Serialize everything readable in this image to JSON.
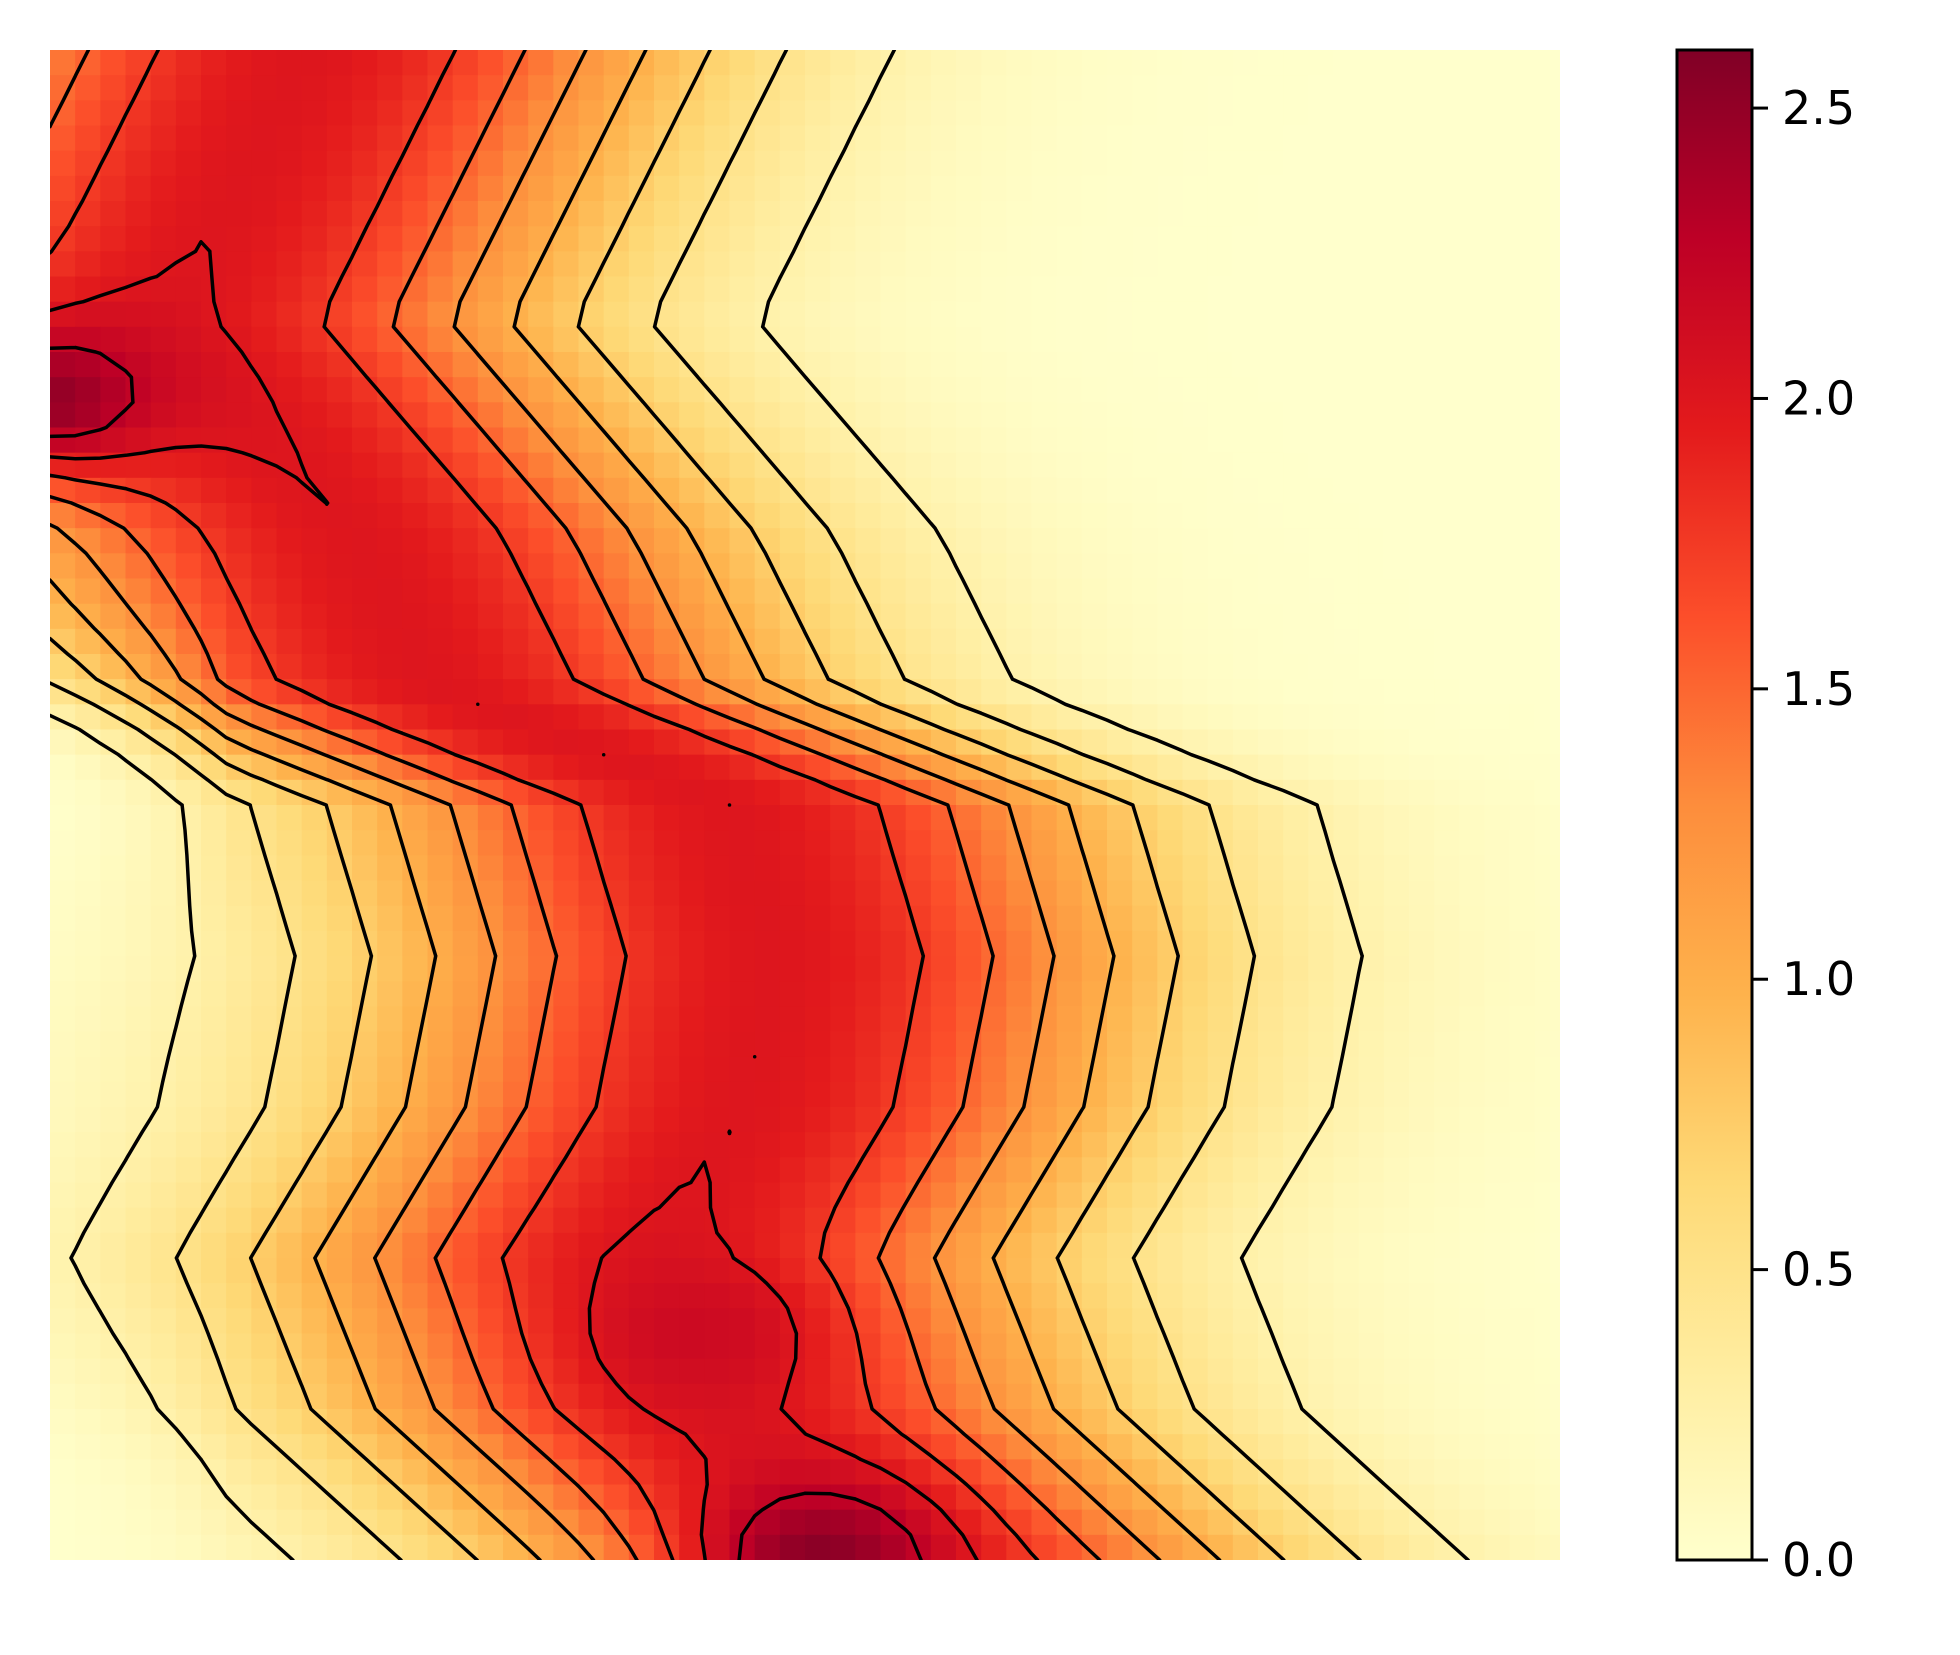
{
  "chart_data": {
    "type": "heatmap",
    "title": "",
    "xlabel": "",
    "ylabel": "",
    "axes_visible": false,
    "grid": false,
    "colormap": {
      "name": "YlOrRd",
      "stops": [
        "#ffffcc",
        "#ffeda0",
        "#fed976",
        "#feb24c",
        "#fd8d3c",
        "#fc4e2a",
        "#e31a1c",
        "#bd0026",
        "#800026"
      ]
    },
    "colorbar": {
      "location": "right",
      "range": [
        0,
        2.6
      ],
      "ticks": [
        0.0,
        0.5,
        1.0,
        1.5,
        2.0,
        2.5
      ],
      "tick_labels": [
        "0.0",
        "0.5",
        "1.0",
        "1.5",
        "2.0",
        "2.5"
      ]
    },
    "contour_color": "#000000",
    "contour_levels": [
      0.25,
      0.5,
      0.75,
      1.0,
      1.25,
      1.5,
      1.75,
      2.0,
      2.25
    ],
    "field": {
      "description": "zigzag band field",
      "value_range": [
        0,
        2.6
      ],
      "band_center_x": [
        0.17,
        0.08,
        0.2,
        0.25,
        0.45,
        0.48,
        0.46,
        0.4,
        0.44,
        0.55
      ],
      "band_center_y": [
        0.0,
        0.18,
        0.32,
        0.42,
        0.5,
        0.6,
        0.7,
        0.8,
        0.9,
        1.0
      ],
      "band_width": 0.4,
      "peak_value": 2.0,
      "hotspots": [
        {
          "x": 0.0,
          "y": 0.23,
          "value": 2.5
        },
        {
          "x": 0.51,
          "y": 1.0,
          "value": 2.55
        },
        {
          "x": 0.43,
          "y": 0.85,
          "value": 2.15
        }
      ]
    }
  }
}
